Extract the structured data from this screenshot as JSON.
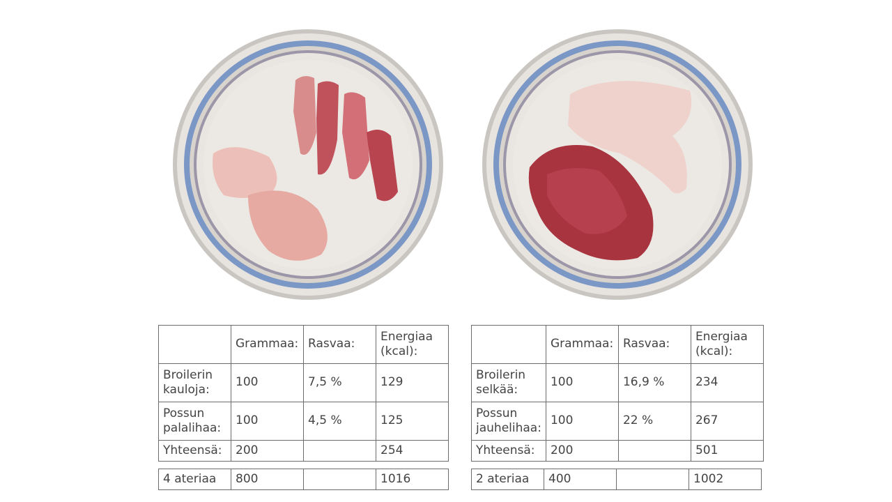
{
  "left": {
    "table": {
      "headers": [
        "",
        "Grammaa:",
        "Rasvaa:",
        "Energiaa (kcal):"
      ],
      "rows": [
        {
          "name": "Broilerin kauloja:",
          "grams": "100",
          "fat": "7,5 %",
          "kcal": "129"
        },
        {
          "name": "Possun palalihaa:",
          "grams": "100",
          "fat": "4,5 %",
          "kcal": "125"
        },
        {
          "name": "Yhteensä:",
          "grams": "200",
          "fat": "",
          "kcal": "254"
        }
      ],
      "meals": {
        "name": "4 ateriaa",
        "grams": "800",
        "fat": "",
        "kcal": "1016"
      }
    }
  },
  "right": {
    "table": {
      "headers": [
        "",
        "Grammaa:",
        "Rasvaa:",
        "Energiaa (kcal):"
      ],
      "rows": [
        {
          "name": "Broilerin selkää:",
          "grams": "100",
          "fat": "16,9 %",
          "kcal": "234"
        },
        {
          "name": "Possun jauhelihaa:",
          "grams": "100",
          "fat": "22 %",
          "kcal": "267"
        },
        {
          "name": "Yhteensä:",
          "grams": "200",
          "fat": "",
          "kcal": "501"
        }
      ],
      "meals": {
        "name": "2 ateriaa",
        "grams": "400",
        "fat": "",
        "kcal": "1002"
      }
    }
  },
  "colors": {
    "plate_rim": "#d9d6d2",
    "plate_blue": "#7b97c6",
    "plate_center": "#e6e2dc",
    "meat_pink": "#e8a8a0",
    "meat_red": "#b84a55",
    "minced": "#a8343f"
  }
}
